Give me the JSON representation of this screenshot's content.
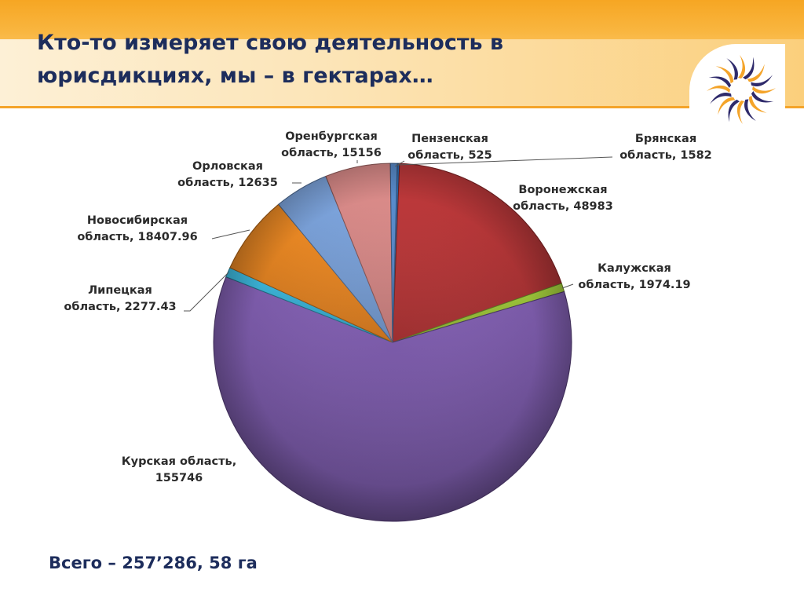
{
  "slide": {
    "title_line1": "Кто-то измеряет свою деятельность в",
    "title_line2": "юрисдикциях, мы – в гектарах…",
    "total": "Всего – 257’286, 58 га"
  },
  "logo": {
    "icon": "sun-swirl-logo",
    "colors": [
      "#f4a42a",
      "#2e2a6b"
    ]
  },
  "chart_data": {
    "type": "pie",
    "title": "",
    "slices": [
      {
        "name": "Пензенская область",
        "value": 525,
        "label_line1": "Пензенская",
        "label_line2": "область, 525",
        "color": "#2f6eb5"
      },
      {
        "name": "Воронежская область",
        "value": 48983,
        "label_line1": "Воронежская",
        "label_line2": "область, 48983",
        "color": "#c0393b"
      },
      {
        "name": "Калужская область",
        "value": 1974.19,
        "label_line1": "Калужская",
        "label_line2": "область, 1974.19",
        "color": "#9dc63a"
      },
      {
        "name": "Курская область",
        "value": 155746,
        "label_line1": "Курская область,",
        "label_line2": "155746",
        "color": "#7a5aa8"
      },
      {
        "name": "Липецкая область",
        "value": 2277.43,
        "label_line1": "Липецкая",
        "label_line2": "область, 2277.43",
        "color": "#3bb4d8"
      },
      {
        "name": "Новосибирская область",
        "value": 18407.96,
        "label_line1": "Новосибирская",
        "label_line2": "область, 18407.96",
        "color": "#f08a24"
      },
      {
        "name": "Орловская область",
        "value": 12635,
        "label_line1": "Орловская",
        "label_line2": "область, 12635",
        "color": "#7ea6df"
      },
      {
        "name": "Оренбургская область",
        "value": 15156,
        "label_line1": "Оренбургская",
        "label_line2": "область, 15156",
        "color": "#de8e8c"
      },
      {
        "name": "Брянская область",
        "value": 1582,
        "label_line1": "Брянская",
        "label_line2": "область, 1582",
        "color": "#5b8fd0"
      }
    ],
    "legend": "none"
  }
}
